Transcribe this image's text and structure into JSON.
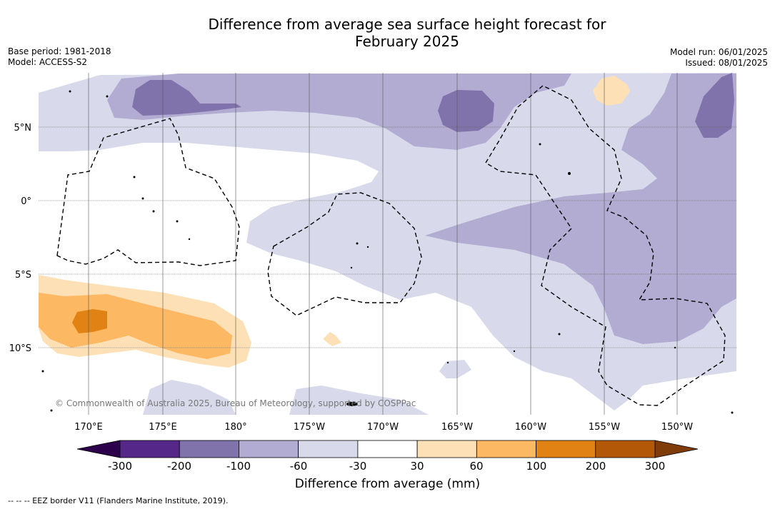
{
  "header": {
    "title_line1": "Difference from average sea surface height forecast for",
    "title_line2": "February 2025",
    "base_period": "Base period: 1981-2018",
    "model": "Model: ACCESS-S2",
    "model_run": "Model run: 06/01/2025",
    "issued": "Issued: 08/01/2025"
  },
  "map": {
    "lat_labels": [
      "5°N",
      "0°",
      "5°S",
      "10°S"
    ],
    "lon_labels": [
      "170°E",
      "175°E",
      "180°",
      "175°W",
      "170°W",
      "165°W",
      "160°W",
      "155°W",
      "150°W"
    ],
    "credit": "© Commonwealth of Australia 2025, Bureau of Meteorology, supported by COSPPac"
  },
  "legend": {
    "title": "Difference from average (mm)",
    "ticks": [
      "-300",
      "-200",
      "-100",
      "-60",
      "-30",
      "30",
      "60",
      "100",
      "200",
      "300"
    ],
    "colors": [
      "#542788",
      "#8073ac",
      "#b2abd2",
      "#d8daeb",
      "#ffffff",
      "#fee0b6",
      "#fdb863",
      "#e08214",
      "#b35806"
    ],
    "under_color": "#2d004b",
    "over_color": "#7f3b08",
    "footnote": "--  --  -- EEZ border V11 (Flanders Marine Institute, 2019)."
  }
}
